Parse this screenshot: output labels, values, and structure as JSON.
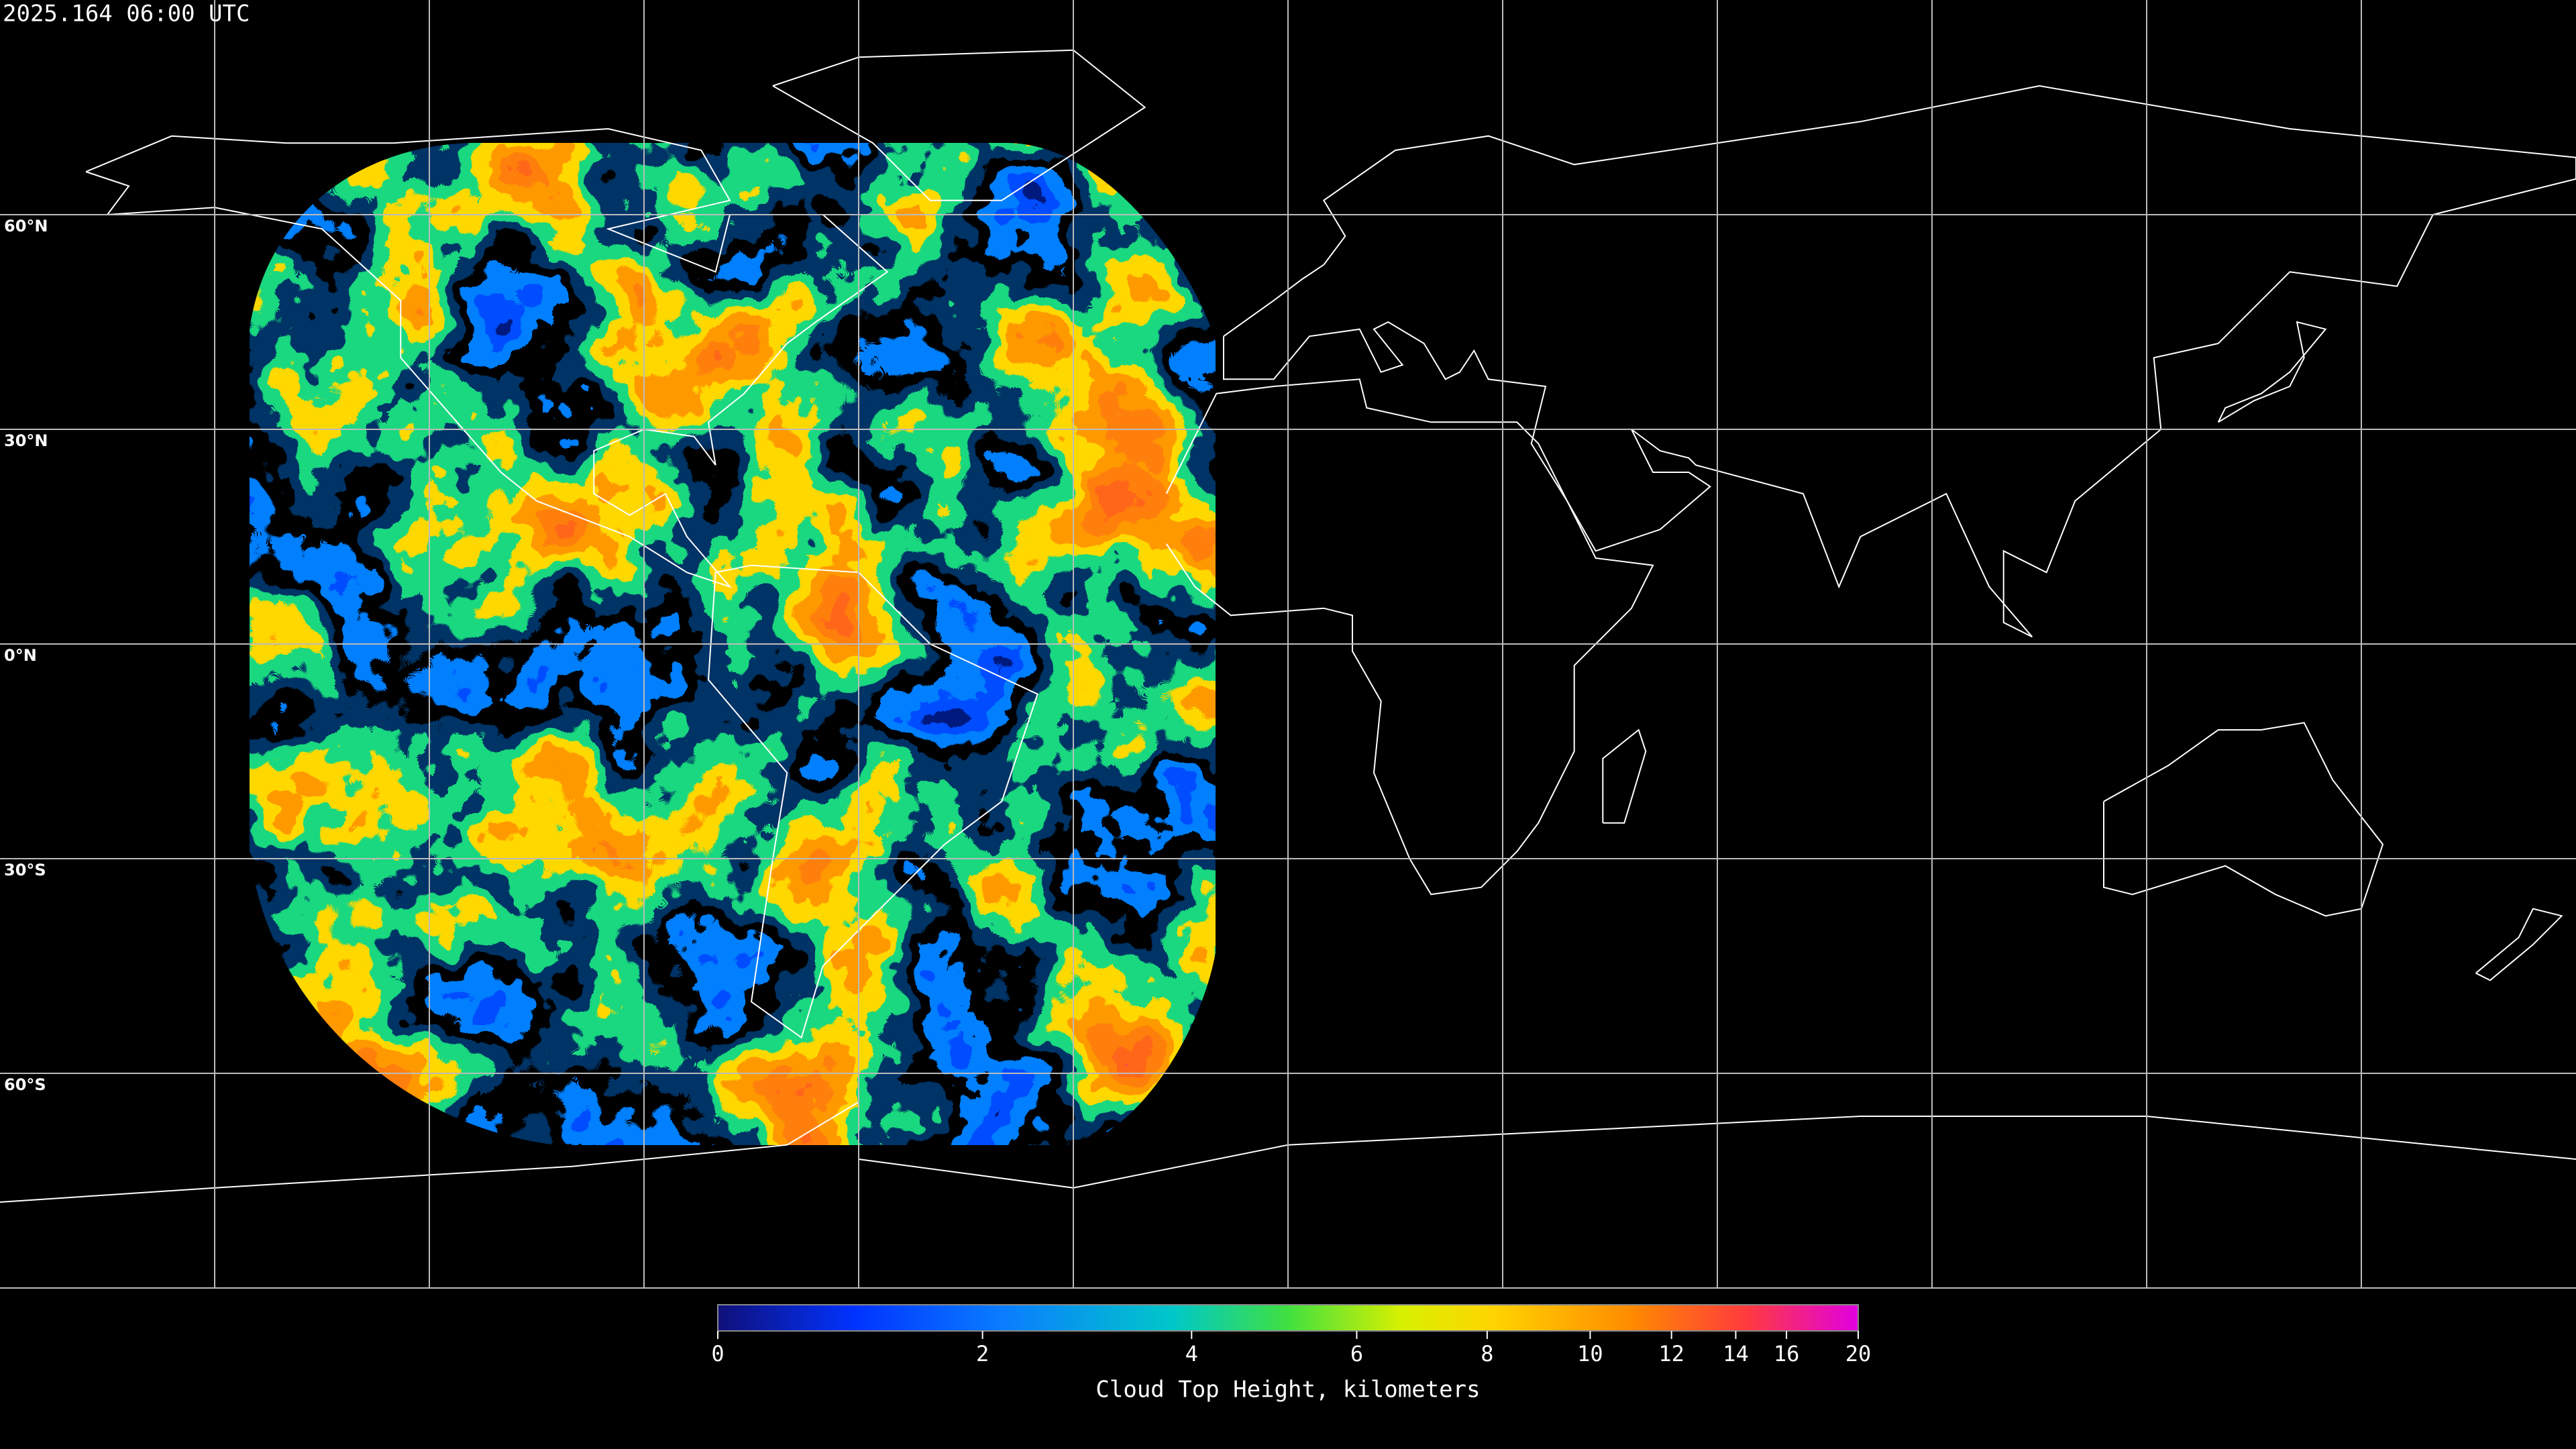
{
  "header": {
    "timestamp": "2025.164 06:00 UTC"
  },
  "map": {
    "lat_labels": [
      "60°N",
      "30°N",
      "0°N",
      "30°S",
      "60°S"
    ]
  },
  "colorbar": {
    "ticks": [
      0,
      2,
      4,
      6,
      8,
      10,
      12,
      14,
      16,
      20
    ],
    "title": "Cloud Top Height, kilometers"
  }
}
